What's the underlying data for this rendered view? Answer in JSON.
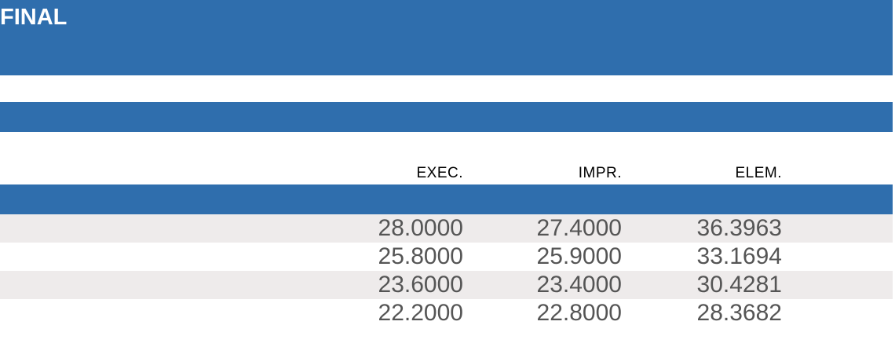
{
  "banner": {
    "title": "FINAL"
  },
  "score_table": {
    "headers": [
      "EXEC.",
      "IMPR.",
      "ELEM."
    ],
    "rows": [
      [
        "28.0000",
        "27.4000",
        "36.3963"
      ],
      [
        "25.8000",
        "25.9000",
        "33.1694"
      ],
      [
        "23.6000",
        "23.4000",
        "30.4281"
      ],
      [
        "22.2000",
        "22.8000",
        "28.3682"
      ]
    ]
  },
  "colors": {
    "band_blue": "#2F6EAD",
    "stripe_gray": "#EEEBEB",
    "number_text": "#555555",
    "header_text": "#000000",
    "banner_text": "#FFFFFF"
  }
}
